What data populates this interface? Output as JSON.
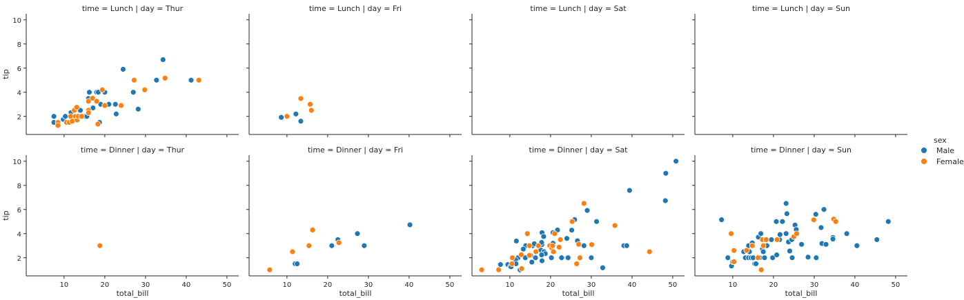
{
  "chart_data": {
    "type": "scatter",
    "xlabel": "total_bill",
    "ylabel": "tip",
    "xlim": [
      0.7,
      52.9
    ],
    "ylim": [
      0.5,
      10.5
    ],
    "xticks": [
      10,
      20,
      30,
      40,
      50
    ],
    "yticks": [
      2,
      4,
      6,
      8,
      10
    ],
    "grid": false,
    "legend": {
      "title": "sex",
      "placement": "right",
      "entries": [
        {
          "label": "Male",
          "color": "#1f77b4"
        },
        {
          "label": "Female",
          "color": "#ff7f0e"
        }
      ]
    },
    "panels": [
      {
        "title": "time = Lunch | day = Thur",
        "time": "Lunch",
        "day": "Thur",
        "male": [
          [
            7.5,
            2
          ],
          [
            7.5,
            1.5
          ],
          [
            9.8,
            1.75
          ],
          [
            10.3,
            2
          ],
          [
            11.7,
            2.31
          ],
          [
            12.5,
            2
          ],
          [
            13,
            2
          ],
          [
            14,
            2.5
          ],
          [
            15.1,
            2
          ],
          [
            15.6,
            2
          ],
          [
            16.2,
            4
          ],
          [
            16,
            3.48
          ],
          [
            17.1,
            2.7
          ],
          [
            18,
            4
          ],
          [
            18.4,
            4
          ],
          [
            18.7,
            1.5
          ],
          [
            19,
            3
          ],
          [
            20,
            4
          ],
          [
            21,
            3
          ],
          [
            22.6,
            3
          ],
          [
            22.8,
            2.2
          ],
          [
            24.5,
            5.9
          ],
          [
            27,
            4
          ],
          [
            28.2,
            2.6
          ],
          [
            32.7,
            5
          ],
          [
            34.3,
            6.7
          ],
          [
            41.2,
            5
          ]
        ],
        "female": [
          [
            8.5,
            1.5
          ],
          [
            8.5,
            1.25
          ],
          [
            10.6,
            1.5
          ],
          [
            11.3,
            1.5
          ],
          [
            11.6,
            2
          ],
          [
            12,
            1.6
          ],
          [
            12.5,
            2.5
          ],
          [
            12.8,
            2
          ],
          [
            13.2,
            1.7
          ],
          [
            13.1,
            2.75
          ],
          [
            13.5,
            2
          ],
          [
            14.3,
            2
          ],
          [
            16,
            3.25
          ],
          [
            16,
            2.5
          ],
          [
            16,
            2.3
          ],
          [
            17,
            3.5
          ],
          [
            18,
            3.25
          ],
          [
            18.3,
            1.36
          ],
          [
            19.4,
            4.2
          ],
          [
            20,
            2.9
          ],
          [
            24,
            2.9
          ],
          [
            27.2,
            5
          ],
          [
            29.8,
            4.2
          ],
          [
            34.8,
            5.17
          ],
          [
            43.1,
            5
          ]
        ]
      },
      {
        "title": "time = Lunch | day = Fri",
        "time": "Lunch",
        "day": "Fri",
        "male": [
          [
            8.6,
            1.92
          ],
          [
            12.2,
            2.2
          ],
          [
            13.4,
            1.6
          ]
        ],
        "female": [
          [
            10,
            2
          ],
          [
            13.4,
            3.48
          ],
          [
            15.7,
            3
          ],
          [
            16,
            2.5
          ]
        ]
      },
      {
        "title": "time = Lunch | day = Sat",
        "time": "Lunch",
        "day": "Sat",
        "male": [],
        "female": []
      },
      {
        "title": "time = Lunch | day = Sun",
        "time": "Lunch",
        "day": "Sun",
        "male": [],
        "female": []
      },
      {
        "title": "time = Dinner | day = Thur",
        "time": "Dinner",
        "day": "Thur",
        "male": [],
        "female": [
          [
            18.8,
            3
          ]
        ]
      },
      {
        "title": "time = Dinner | day = Fri",
        "time": "Dinner",
        "day": "Fri",
        "male": [
          [
            12,
            1.5
          ],
          [
            12.5,
            1.5
          ],
          [
            21,
            3
          ],
          [
            22.5,
            3.5
          ],
          [
            27.3,
            4
          ],
          [
            28.97,
            3
          ],
          [
            40.2,
            4.73
          ]
        ],
        "female": [
          [
            5.75,
            1
          ],
          [
            11.35,
            2.5
          ],
          [
            15.4,
            3
          ],
          [
            16.3,
            4.3
          ],
          [
            22.75,
            3.25
          ]
        ]
      },
      {
        "title": "time = Dinner | day = Sat",
        "time": "Dinner",
        "day": "Sat",
        "male": [
          [
            50.8,
            10
          ],
          [
            48.3,
            9
          ],
          [
            39.4,
            7.58
          ],
          [
            48.2,
            6.73
          ],
          [
            29,
            5.92
          ],
          [
            25.9,
            5.16
          ],
          [
            31.3,
            5
          ],
          [
            21.7,
            4.3
          ],
          [
            25.2,
            4.29
          ],
          [
            17.9,
            4.08
          ],
          [
            20.6,
            4.08
          ],
          [
            18.3,
            3.76
          ],
          [
            24,
            3.6
          ],
          [
            11.6,
            3.39
          ],
          [
            26.6,
            3.41
          ],
          [
            13.9,
            3
          ],
          [
            15.6,
            3
          ],
          [
            28.2,
            3
          ],
          [
            38,
            3
          ],
          [
            38.7,
            3
          ],
          [
            20.3,
            3
          ],
          [
            17.9,
            3.1
          ],
          [
            17.8,
            3.27
          ],
          [
            20.6,
            3.2
          ],
          [
            16,
            3.16
          ],
          [
            13.3,
            2.72
          ],
          [
            17.6,
            2.64
          ],
          [
            18.4,
            2.5
          ],
          [
            18.7,
            2.34
          ],
          [
            17.8,
            2.24
          ],
          [
            15.1,
            2.2
          ],
          [
            16.3,
            2
          ],
          [
            20.2,
            2
          ],
          [
            22.7,
            2
          ],
          [
            24.1,
            2
          ],
          [
            24.3,
            2
          ],
          [
            30,
            2
          ],
          [
            12,
            2
          ],
          [
            13.8,
            2
          ],
          [
            11.4,
            1.83
          ],
          [
            17.9,
            1.75
          ],
          [
            15.4,
            1.64
          ],
          [
            7.7,
            1.44
          ],
          [
            9.5,
            1.44
          ],
          [
            10.1,
            1.25
          ],
          [
            10.6,
            1.46
          ],
          [
            11.5,
            1.5
          ],
          [
            12.5,
            1
          ],
          [
            32.8,
            1.17
          ],
          [
            10.3,
            1.25
          ]
        ],
        "female": [
          [
            3.07,
            1
          ],
          [
            7.25,
            1
          ],
          [
            10.6,
            2
          ],
          [
            10.5,
            1.5
          ],
          [
            12.8,
            2.25
          ],
          [
            12.9,
            1.1
          ],
          [
            14.3,
            4
          ],
          [
            14.8,
            3
          ],
          [
            14.8,
            2.2
          ],
          [
            16.4,
            2.5
          ],
          [
            17,
            3
          ],
          [
            19.8,
            3
          ],
          [
            20.3,
            2.8
          ],
          [
            20.5,
            3
          ],
          [
            20.7,
            2.5
          ],
          [
            21,
            4
          ],
          [
            22.4,
            3.5
          ],
          [
            22.1,
            2.88
          ],
          [
            25.3,
            5
          ],
          [
            26.4,
            1.5
          ],
          [
            26.9,
            3.12
          ],
          [
            27.2,
            2
          ],
          [
            28.2,
            6.5
          ],
          [
            30.1,
            3.09
          ],
          [
            35.8,
            4.67
          ],
          [
            44.3,
            2.5
          ]
        ]
      },
      {
        "title": "time = Dinner | day = Sun",
        "time": "Dinner",
        "day": "Sun",
        "male": [
          [
            7.25,
            5.15
          ],
          [
            8.8,
            2
          ],
          [
            9.7,
            1.32
          ],
          [
            10,
            1.66
          ],
          [
            12.7,
            2.5
          ],
          [
            13.1,
            2
          ],
          [
            13.9,
            3
          ],
          [
            13.9,
            2
          ],
          [
            14.1,
            2.5
          ],
          [
            14.5,
            2
          ],
          [
            14.8,
            3.23
          ],
          [
            15,
            2
          ],
          [
            15.4,
            1.5
          ],
          [
            15.7,
            1.5
          ],
          [
            16.3,
            3.71
          ],
          [
            16.9,
            4
          ],
          [
            16.6,
            2
          ],
          [
            17.3,
            2.71
          ],
          [
            17.5,
            2.5
          ],
          [
            17.8,
            2
          ],
          [
            18,
            3
          ],
          [
            18.4,
            3
          ],
          [
            19.5,
            3.5
          ],
          [
            19.8,
            2
          ],
          [
            20.7,
            5
          ],
          [
            20.8,
            2.24
          ],
          [
            21.5,
            3.5
          ],
          [
            21.6,
            3.92
          ],
          [
            22.2,
            5
          ],
          [
            23.1,
            4
          ],
          [
            23.1,
            6.5
          ],
          [
            23.3,
            5.65
          ],
          [
            23.7,
            3.31
          ],
          [
            24,
            2.56
          ],
          [
            24.5,
            3.5
          ],
          [
            24.6,
            2
          ],
          [
            25.3,
            4.71
          ],
          [
            25.6,
            4.34
          ],
          [
            26.9,
            3.11
          ],
          [
            28.5,
            2.05
          ],
          [
            30.4,
            5.6
          ],
          [
            30.5,
            2
          ],
          [
            31.7,
            4.5
          ],
          [
            31.9,
            3.18
          ],
          [
            32.4,
            6
          ],
          [
            32.9,
            3.11
          ],
          [
            34.6,
            3.68
          ],
          [
            34.6,
            3.55
          ],
          [
            38,
            4
          ],
          [
            40.5,
            3
          ],
          [
            45.4,
            3.5
          ],
          [
            48.2,
            5
          ]
        ],
        "female": [
          [
            9.6,
            4
          ],
          [
            10.3,
            2.6
          ],
          [
            10.3,
            1.67
          ],
          [
            13.4,
            2.61
          ],
          [
            14.8,
            3
          ],
          [
            16.2,
            2
          ],
          [
            17,
            1
          ],
          [
            17.3,
            3.5
          ],
          [
            17.5,
            3
          ],
          [
            18.2,
            3.5
          ],
          [
            20.9,
            3.5
          ],
          [
            25,
            3.75
          ],
          [
            25.7,
            4
          ],
          [
            29.9,
            5.14
          ],
          [
            34.8,
            5.2
          ],
          [
            35.3,
            5
          ]
        ]
      }
    ]
  }
}
